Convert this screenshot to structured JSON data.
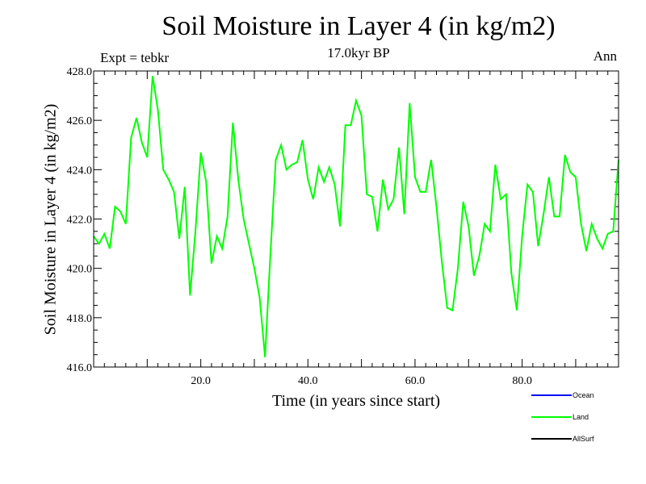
{
  "chart_data": {
    "type": "line",
    "title": "Soil Moisture in Layer 4 (in kg/m2)",
    "subtitle": "17.0kyr BP",
    "expt_label": "Expt = tebkr",
    "season_label": "Ann",
    "xlabel": "Time (in years since start)",
    "ylabel": "Soil Moisture in Layer 4 (in kg/m2)",
    "xlim": [
      0,
      98
    ],
    "ylim": [
      416,
      428
    ],
    "xticks": [
      20,
      40,
      60,
      80
    ],
    "xtick_labels": [
      "20.0",
      "40.0",
      "60.0",
      "80.0"
    ],
    "yticks": [
      416,
      418,
      420,
      422,
      424,
      426,
      428
    ],
    "ytick_labels": [
      "416.0",
      "418.0",
      "420.0",
      "422.0",
      "424.0",
      "426.0",
      "428.0"
    ],
    "legend": [
      {
        "name": "Ocean",
        "color": "#0000ff"
      },
      {
        "name": "Land",
        "color": "#00ff00"
      },
      {
        "name": "AllSurf",
        "color": "#000000"
      }
    ],
    "series": [
      {
        "name": "Land",
        "color": "#00ff00",
        "x": [
          0,
          1,
          2,
          3,
          4,
          5,
          6,
          7,
          8,
          9,
          10,
          11,
          12,
          13,
          14,
          15,
          16,
          17,
          18,
          19,
          20,
          21,
          22,
          23,
          24,
          25,
          26,
          27,
          28,
          29,
          30,
          31,
          32,
          33,
          34,
          35,
          36,
          37,
          38,
          39,
          40,
          41,
          42,
          43,
          44,
          45,
          46,
          47,
          48,
          49,
          50,
          51,
          52,
          53,
          54,
          55,
          56,
          57,
          58,
          59,
          60,
          61,
          62,
          63,
          64,
          65,
          66,
          67,
          68,
          69,
          70,
          71,
          72,
          73,
          74,
          75,
          76,
          77,
          78,
          79,
          80,
          81,
          82,
          83,
          84,
          85,
          86,
          87,
          88,
          89,
          90,
          91,
          92,
          93,
          94,
          95,
          96,
          97,
          98
        ],
        "values": [
          421.3,
          421.0,
          421.4,
          420.8,
          422.5,
          422.3,
          421.8,
          425.3,
          426.1,
          425.1,
          424.5,
          427.8,
          426.4,
          424.0,
          423.6,
          423.1,
          421.2,
          423.3,
          418.9,
          421.5,
          424.7,
          423.5,
          420.2,
          421.3,
          420.8,
          422.1,
          425.9,
          423.6,
          422.0,
          421.0,
          420.0,
          418.8,
          416.4,
          420.6,
          424.4,
          425.0,
          424.0,
          424.2,
          424.3,
          425.2,
          423.6,
          422.8,
          424.1,
          423.5,
          424.1,
          423.4,
          421.7,
          425.8,
          425.8,
          426.8,
          426.2,
          423.0,
          422.9,
          421.5,
          423.6,
          422.4,
          422.8,
          424.9,
          422.2,
          426.7,
          423.7,
          423.1,
          423.1,
          424.4,
          422.5,
          420.3,
          418.4,
          418.3,
          420.0,
          422.7,
          421.7,
          419.7,
          420.5,
          421.8,
          421.5,
          424.2,
          422.8,
          423.0,
          419.8,
          418.3,
          421.3,
          423.4,
          423.1,
          420.9,
          422.2,
          423.7,
          422.1,
          422.1,
          424.6,
          423.9,
          423.7,
          421.8,
          420.7,
          421.8,
          421.2,
          420.8,
          421.4,
          421.5,
          424.4
        ]
      }
    ]
  }
}
